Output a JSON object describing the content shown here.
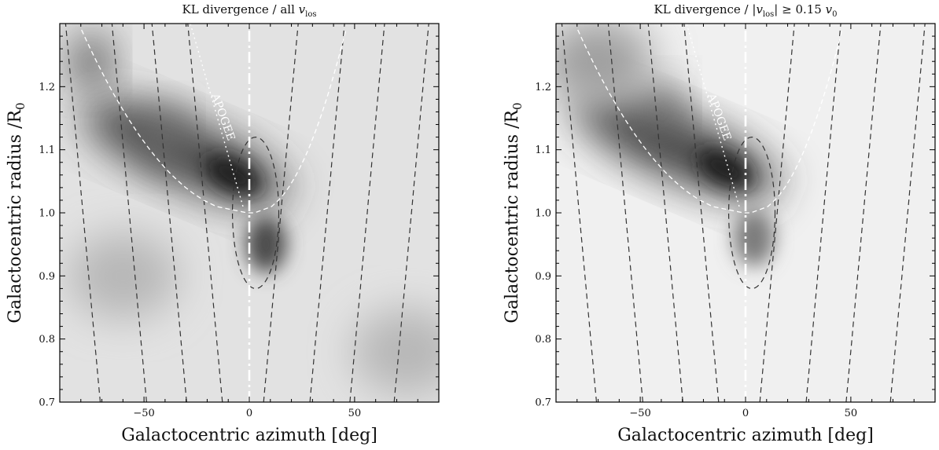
{
  "chart_data": [
    {
      "type": "heatmap",
      "title": "KL divergence / all v_los",
      "title_main": "KL divergence / all ",
      "title_var": "v",
      "title_sub": "los",
      "xlabel": "Galactocentric azimuth [deg]",
      "ylabel": "Galactocentric radius /R",
      "ylabel_sub": "0",
      "xlim": [
        -90,
        90
      ],
      "ylim": [
        0.7,
        1.3
      ],
      "xticks": [
        -50,
        0,
        50
      ],
      "xtick_labels": [
        "−50",
        "0",
        "50"
      ],
      "yticks": [
        0.7,
        0.8,
        0.9,
        1.0,
        1.1,
        1.2
      ],
      "ytick_labels": [
        "0.7",
        "0.8",
        "0.9",
        "1.0",
        "1.1",
        "1.2"
      ],
      "colormap": "greys",
      "annotation": "APOGEE",
      "dark_regions": [
        {
          "azimuth": -8,
          "radius": 1.06,
          "intensity": 0.95
        },
        {
          "azimuth": -40,
          "radius": 1.12,
          "intensity": 0.6
        },
        {
          "azimuth": -75,
          "radius": 1.24,
          "intensity": 0.7
        },
        {
          "azimuth": 8,
          "radius": 0.95,
          "intensity": 0.75
        },
        {
          "azimuth": 75,
          "radius": 0.78,
          "intensity": 0.3
        },
        {
          "azimuth": -60,
          "radius": 0.9,
          "intensity": 0.3
        }
      ]
    },
    {
      "type": "heatmap",
      "title": "KL divergence / |v_los| ≥ 0.15 v_0",
      "title_main": "KL divergence / |",
      "title_var": "v",
      "title_sub": "los",
      "title_tail": "| ≥ 0.15 ",
      "title_var2": "v",
      "title_sub2": "0",
      "xlabel": "Galactocentric azimuth [deg]",
      "ylabel": "Galactocentric radius /R",
      "ylabel_sub": "0",
      "xlim": [
        -90,
        90
      ],
      "ylim": [
        0.7,
        1.3
      ],
      "xticks": [
        -50,
        0,
        50
      ],
      "xtick_labels": [
        "−50",
        "0",
        "50"
      ],
      "yticks": [
        0.7,
        0.8,
        0.9,
        1.0,
        1.1,
        1.2
      ],
      "ytick_labels": [
        "0.7",
        "0.8",
        "0.9",
        "1.0",
        "1.1",
        "1.2"
      ],
      "colormap": "greys",
      "annotation": "APOGEE",
      "dark_regions": [
        {
          "azimuth": -10,
          "radius": 1.07,
          "intensity": 0.95
        },
        {
          "azimuth": -40,
          "radius": 1.16,
          "intensity": 0.65
        },
        {
          "azimuth": -70,
          "radius": 1.24,
          "intensity": 0.4
        },
        {
          "azimuth": 4,
          "radius": 0.96,
          "intensity": 0.55
        }
      ]
    }
  ],
  "overlay": {
    "dashed_curve_azimuth_at_R0": [
      -79,
      -57,
      -38,
      -21,
      15,
      37,
      56,
      77
    ],
    "apogee_bound_color": "#ffffff",
    "contour_color": "#333333"
  }
}
